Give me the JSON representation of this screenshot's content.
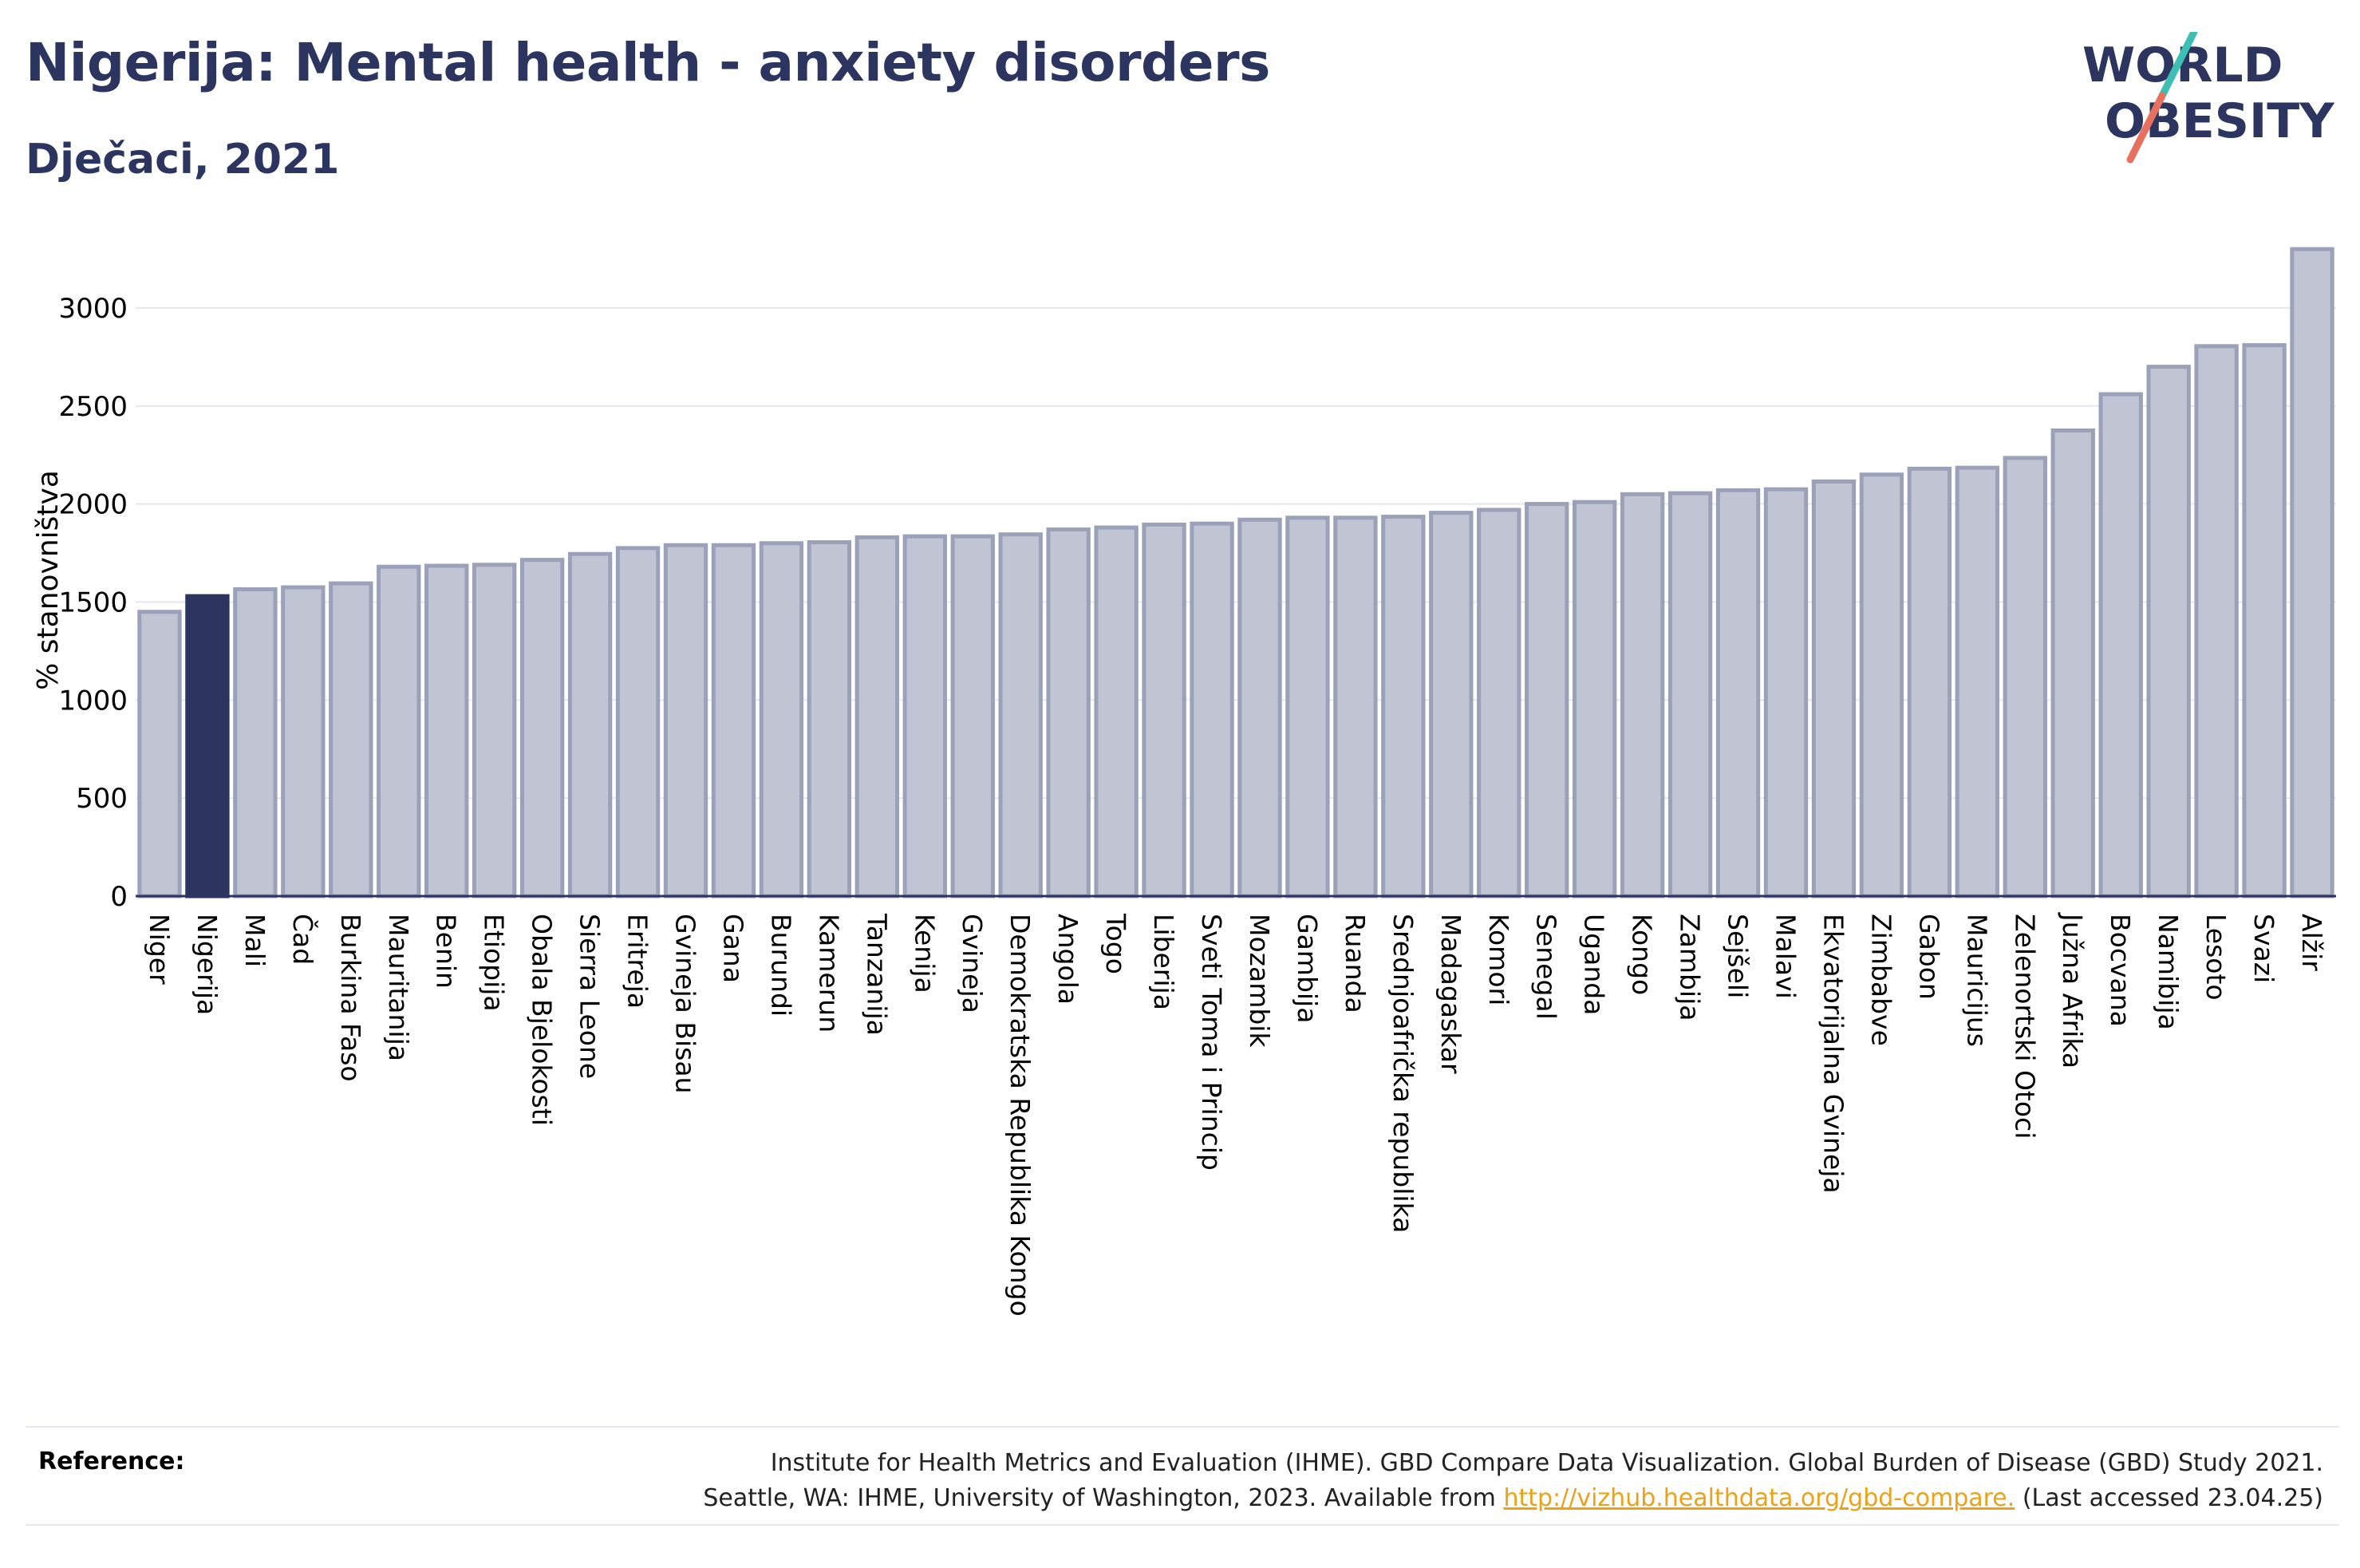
{
  "header": {
    "title": "Nigerija: Mental health - anxiety disorders",
    "subtitle": "Dječaci, 2021"
  },
  "logo": {
    "line1": "WORLD",
    "line2": "OBESITY",
    "colors": {
      "text": "#2b3560",
      "slash_top": "#3dbfb3",
      "slash_bottom": "#e8705e"
    }
  },
  "reference": {
    "label": "Reference:",
    "line1": "Institute for Health Metrics and Evaluation (IHME). GBD Compare Data Visualization. Global Burden of Disease (GBD) Study 2021.",
    "line2_prefix": "Seattle, WA: IHME, University of Washington, 2023. Available from ",
    "link": "http://vizhub.healthdata.org/gbd-compare.",
    "line2_suffix": " (Last accessed 23.04.25)"
  },
  "colors": {
    "bar": "#c0c4d3",
    "bar_border": "#9aa1b9",
    "highlight": "#2b3560",
    "grid": "#e5e7ec",
    "axis": "#2b3560",
    "link": "#e9a21a"
  },
  "chart_data": {
    "type": "bar",
    "title": "Nigerija: Mental health - anxiety disorders",
    "subtitle": "Dječaci, 2021",
    "xlabel": "",
    "ylabel": "% stanovništva",
    "ylim": [
      0,
      3370
    ],
    "yticks": [
      0,
      500,
      1000,
      1500,
      2000,
      2500,
      3000
    ],
    "grid": true,
    "highlight": "Nigerija",
    "categories": [
      "Niger",
      "Nigerija",
      "Mali",
      "Čad",
      "Burkina Faso",
      "Mauritanija",
      "Benin",
      "Etiopija",
      "Obala Bjelokosti",
      "Sierra Leone",
      "Eritreja",
      "Gvineja Bisau",
      "Gana",
      "Burundi",
      "Kamerun",
      "Tanzanija",
      "Kenija",
      "Gvineja",
      "Demokratska Republika Kongo",
      "Angola",
      "Togo",
      "Liberija",
      "Sveti Toma i Princip",
      "Mozambik",
      "Gambija",
      "Ruanda",
      "Srednjoafrička republika",
      "Madagaskar",
      "Komori",
      "Senegal",
      "Uganda",
      "Kongo",
      "Zambija",
      "Sejšeli",
      "Malavi",
      "Ekvatorijalna Gvineja",
      "Zimbabve",
      "Gabon",
      "Mauricijus",
      "Zelenortski Otoci",
      "Južna Afrika",
      "Bocvana",
      "Namibija",
      "Lesoto",
      "Svazi",
      "Alžir"
    ],
    "values": [
      1450,
      1530,
      1565,
      1575,
      1595,
      1680,
      1685,
      1690,
      1715,
      1745,
      1775,
      1790,
      1790,
      1800,
      1805,
      1830,
      1835,
      1835,
      1845,
      1870,
      1880,
      1895,
      1900,
      1920,
      1930,
      1930,
      1935,
      1955,
      1970,
      2000,
      2010,
      2050,
      2055,
      2070,
      2075,
      2115,
      2150,
      2180,
      2185,
      2235,
      2375,
      2560,
      2700,
      2805,
      2810,
      3300
    ]
  }
}
